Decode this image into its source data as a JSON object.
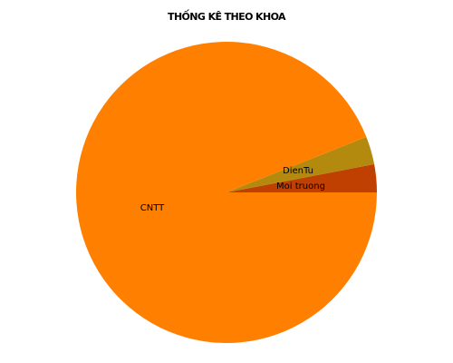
{
  "chart_data": {
    "type": "pie",
    "title": "THỐNG KÊ THEO KHOA",
    "slices": [
      {
        "label": "Moi truong",
        "value": 3,
        "color": "#BF4000"
      },
      {
        "label": "DienTu",
        "value": 3,
        "color": "#B38A0D"
      },
      {
        "label": "CNTT",
        "value": 94,
        "color": "#FF8000"
      }
    ],
    "start_angle_deg": 0,
    "direction": "counterclockwise",
    "legend": "none",
    "labels": "inside-slices"
  }
}
